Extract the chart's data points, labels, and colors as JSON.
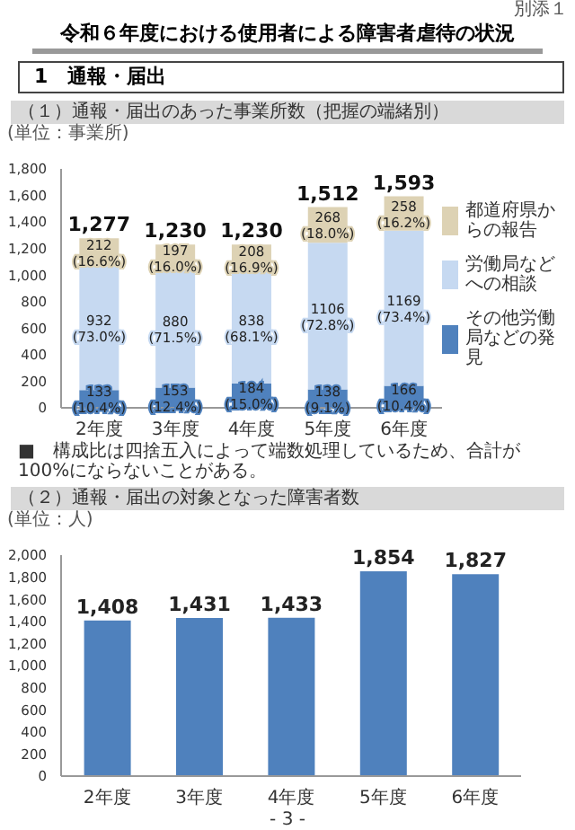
{
  "chart_data": [
    {
      "type": "bar",
      "stacked": true,
      "title": "（１）通報・届出のあった事業所数（把握の端緒別）",
      "ylabel": "(単位：事業所)",
      "categories": [
        "2年度",
        "3年度",
        "4年度",
        "5年度",
        "6年度"
      ],
      "series": [
        {
          "name": "その他労働局などの発見",
          "color": "#4f81bd",
          "values": [
            133,
            153,
            184,
            138,
            166
          ],
          "value_labels": [
            "133 (10.4%)",
            "153 (12.4%)",
            "184 (15.0%)",
            "138 (9.1%)",
            "166 (10.4%)"
          ]
        },
        {
          "name": "労働局などへの相談",
          "color": "#c6d9f1",
          "values": [
            932,
            880,
            838,
            1106,
            1169
          ],
          "value_labels": [
            "932 (73.0%)",
            "880 (71.5%)",
            "838 (68.1%)",
            "1106 (72.8%)",
            "1169 (73.4%)"
          ]
        },
        {
          "name": "都道府県からの報告",
          "color": "#ddd2b4",
          "values": [
            212,
            197,
            208,
            268,
            258
          ],
          "value_labels": [
            "212 (16.6%)",
            "197 (16.0%)",
            "208 (16.9%)",
            "268 (18.0%)",
            "258 (16.2%)"
          ]
        }
      ],
      "totals": [
        "1,277",
        "1,230",
        "1,230",
        "1,512",
        "1,593"
      ],
      "ylim": [
        0,
        1800
      ],
      "yticks": [
        0,
        200,
        400,
        600,
        800,
        {
          "value": 1000,
          "label": "1,000"
        },
        {
          "value": 1200,
          "label": "1,200"
        },
        {
          "value": 1400,
          "label": "1,400"
        },
        {
          "value": 1600,
          "label": "1,600"
        },
        {
          "value": 1800,
          "label": "1,800"
        }
      ],
      "legend": "right",
      "annotations": [
        "別添１",
        "令和６年度における使用者による障害者虐待の状況",
        "1　通報・届出",
        "■　構成比は四捨五入によって端数処理しているため、合計が100%にならないことがある。"
      ]
    },
    {
      "type": "bar",
      "title": "（２）通報・届出の対象となった障害者数",
      "ylabel": "(単位：人)",
      "categories": [
        "2年度",
        "3年度",
        "4年度",
        "5年度",
        "6年度"
      ],
      "series": [
        {
          "color": "#4f81bd",
          "values": [
            1408,
            1431,
            1433,
            1854,
            1827
          ],
          "value_labels": [
            "1,408",
            "1,431",
            "1,433",
            "1,854",
            "1,827"
          ]
        }
      ],
      "ylim": [
        0,
        2000
      ],
      "yticks": [
        0,
        200,
        400,
        600,
        800,
        {
          "value": 1000,
          "label": "1,000"
        },
        {
          "value": 1200,
          "label": "1,200"
        },
        {
          "value": 1400,
          "label": "1,400"
        },
        {
          "value": 1600,
          "label": "1,600"
        },
        {
          "value": 1800,
          "label": "1,800"
        },
        {
          "value": 2000,
          "label": "2,000"
        }
      ],
      "annotations": [
        "- 3 -"
      ]
    }
  ]
}
